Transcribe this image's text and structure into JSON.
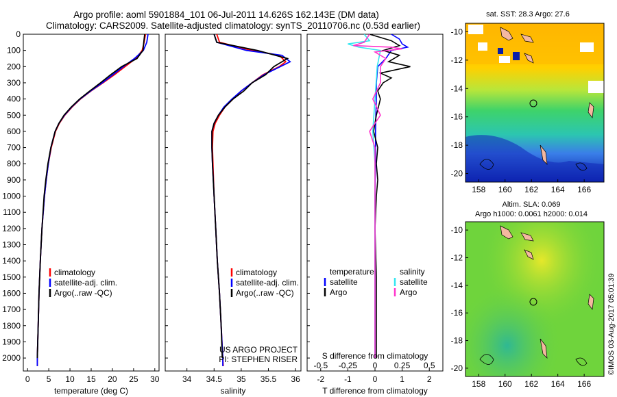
{
  "header": {
    "line1": "Argo profile: aoml 5901884_101 06-Jul-2011 14.626S 162.143E (DM data)",
    "line2": "Climatology: CARS2009. Satellite-adjusted climatology: synTS_20110706.nc (0.53d earlier)"
  },
  "colors": {
    "climatology": "#ff0000",
    "satellite": "#0000ff",
    "argo": "#000000",
    "sal_satellite": "#33e6f0",
    "sal_argo": "#ff33cc"
  },
  "chart_data": [
    {
      "type": "line",
      "id": "temperature",
      "xlabel": "temperature (deg C)",
      "xlim": [
        -1,
        31
      ],
      "xticks": [
        0,
        5,
        10,
        15,
        20,
        25,
        30
      ],
      "ylim": [
        0,
        2080
      ],
      "yticks": [
        0,
        100,
        200,
        300,
        400,
        500,
        600,
        700,
        800,
        900,
        1000,
        1100,
        1200,
        1300,
        1400,
        1500,
        1600,
        1700,
        1800,
        1900,
        2000
      ],
      "legend": [
        "climatology",
        "satellite-adj. clim.",
        "Argo(..raw -QC)"
      ],
      "series": [
        {
          "name": "climatology",
          "depth": [
            0,
            50,
            100,
            150,
            200,
            250,
            300,
            350,
            400,
            450,
            500,
            550,
            600,
            700,
            800,
            900,
            1000,
            1200,
            1400,
            1600,
            1800,
            2000,
            2050
          ],
          "values": [
            27.8,
            27.5,
            27.0,
            25.5,
            23.0,
            20.5,
            17.8,
            15.0,
            12.5,
            10.5,
            8.8,
            7.5,
            6.6,
            5.6,
            4.9,
            4.4,
            4.0,
            3.4,
            3.0,
            2.7,
            2.5,
            2.3,
            2.3
          ]
        },
        {
          "name": "satellite-adj. clim.",
          "depth": [
            0,
            50,
            100,
            150,
            200,
            250,
            300,
            350,
            400,
            450,
            500,
            550,
            600,
            700,
            800,
            900,
            1000,
            1200,
            1400,
            1600,
            1800,
            2000,
            2050
          ],
          "values": [
            28.4,
            28.1,
            27.3,
            25.2,
            22.6,
            20.1,
            17.6,
            14.9,
            12.4,
            10.4,
            8.7,
            7.4,
            6.5,
            5.5,
            4.9,
            4.4,
            4.0,
            3.4,
            3.0,
            2.7,
            2.5,
            2.3,
            2.3
          ]
        },
        {
          "name": "Argo(..raw -QC)",
          "depth": [
            0,
            50,
            100,
            150,
            200,
            250,
            300,
            350,
            400,
            450,
            500,
            550,
            600,
            700,
            800,
            900,
            1000,
            1200,
            1400,
            1600,
            1800,
            2000
          ],
          "values": [
            27.6,
            27.4,
            27.2,
            25.8,
            22.2,
            19.6,
            17.2,
            14.7,
            12.3,
            10.3,
            8.6,
            7.4,
            6.5,
            5.5,
            4.8,
            4.3,
            3.9,
            3.4,
            3.0,
            2.7,
            2.5,
            2.3
          ]
        }
      ]
    },
    {
      "type": "line",
      "id": "salinity",
      "xlabel": "salinity",
      "xlim": [
        33.6,
        36.1
      ],
      "xticks": [
        34,
        34.5,
        35,
        35.5,
        36
      ],
      "ylim": [
        0,
        2080
      ],
      "legend": [
        "climatology",
        "satellite-adj. clim.",
        "Argo(..raw -QC)"
      ],
      "annotation": [
        "US ARGO PROJECT",
        "PI: STEPHEN RISER"
      ],
      "series": [
        {
          "name": "climatology",
          "depth": [
            0,
            50,
            100,
            130,
            170,
            200,
            250,
            300,
            350,
            400,
            450,
            500,
            550,
            600,
            700,
            800,
            1000,
            1200,
            1400,
            1600,
            1800,
            2000,
            2050
          ],
          "values": [
            34.55,
            34.6,
            35.2,
            35.7,
            35.82,
            35.7,
            35.4,
            35.2,
            35.0,
            34.85,
            34.7,
            34.6,
            34.52,
            34.48,
            34.47,
            34.48,
            34.5,
            34.53,
            34.56,
            34.6,
            34.63,
            34.66,
            34.67
          ]
        },
        {
          "name": "satellite-adj. clim.",
          "depth": [
            0,
            50,
            100,
            130,
            170,
            200,
            250,
            300,
            350,
            400,
            450,
            500,
            550,
            600,
            700,
            800,
            1000,
            1200,
            1400,
            1600,
            1800,
            2000,
            2050
          ],
          "values": [
            34.5,
            34.55,
            35.1,
            35.75,
            35.9,
            35.72,
            35.42,
            35.2,
            35.0,
            34.83,
            34.68,
            34.58,
            34.5,
            34.46,
            34.46,
            34.47,
            34.5,
            34.53,
            34.56,
            34.6,
            34.63,
            34.66,
            34.66
          ]
        },
        {
          "name": "Argo(..raw -QC)",
          "depth": [
            0,
            50,
            100,
            150,
            200,
            250,
            300,
            350,
            400,
            450,
            500,
            550,
            600,
            700,
            800,
            1000,
            1200,
            1400,
            1600,
            1800,
            2000
          ],
          "values": [
            34.5,
            34.55,
            35.3,
            35.85,
            35.6,
            35.45,
            35.2,
            35.05,
            34.85,
            34.7,
            34.58,
            34.5,
            34.46,
            34.46,
            34.47,
            34.5,
            34.53,
            34.56,
            34.6,
            34.63,
            34.65
          ]
        }
      ]
    },
    {
      "type": "line",
      "id": "difference",
      "xlabel": "T difference from climatology",
      "xlabel2": "S difference from climatology",
      "xlim": [
        -2.5,
        2.5
      ],
      "xticks": [
        -2,
        -1,
        0,
        1,
        2
      ],
      "xticks2": [
        "-0.5",
        "-0.25",
        "0",
        "0.25",
        "0.5"
      ],
      "ylim": [
        0,
        2080
      ],
      "legend_left_title": "temperature",
      "legend_right_title": "salinity",
      "legend": [
        "satellite",
        "Argo",
        "satellite",
        "Argo"
      ],
      "series": [
        {
          "name": "T satellite",
          "depth": [
            0,
            30,
            60,
            80,
            100,
            150,
            200,
            300,
            400,
            500,
            600,
            800,
            1000,
            1500,
            2000
          ],
          "values": [
            0.6,
            0.9,
            1.0,
            1.2,
            0.6,
            0.4,
            0.1,
            0.05,
            0.05,
            0.03,
            0.02,
            0.02,
            0.0,
            0.0,
            0.0
          ]
        },
        {
          "name": "T Argo",
          "depth": [
            0,
            40,
            70,
            100,
            130,
            170,
            200,
            240,
            270,
            300,
            350,
            400,
            500,
            600,
            700,
            800,
            900,
            1000,
            1200,
            1500,
            2000
          ],
          "values": [
            -0.2,
            0.6,
            0.9,
            0.3,
            0.9,
            0.5,
            1.3,
            0.2,
            0.6,
            0.3,
            0.1,
            0.2,
            0.05,
            -0.05,
            0.1,
            0.05,
            0.1,
            0.05,
            0.0,
            0.05,
            0.05
          ]
        },
        {
          "name": "S satellite",
          "depth": [
            0,
            40,
            60,
            80,
            100,
            200,
            400,
            600,
            800,
            1000,
            1500,
            2000
          ],
          "values": [
            -0.1,
            -0.05,
            -0.25,
            -0.15,
            0.05,
            0.02,
            0.0,
            -0.02,
            0.0,
            0.0,
            0.0,
            0.0
          ]
        },
        {
          "name": "S Argo",
          "depth": [
            0,
            50,
            70,
            80,
            90,
            110,
            150,
            200,
            300,
            400,
            500,
            600,
            700,
            800,
            1000,
            1500,
            2000
          ],
          "values": [
            -0.05,
            -0.1,
            -0.2,
            0.15,
            0.25,
            0.0,
            0.1,
            0.05,
            0.05,
            -0.02,
            0.05,
            -0.05,
            0.0,
            0.0,
            0.0,
            0.0,
            0.0
          ]
        }
      ]
    }
  ],
  "maps": {
    "sst": {
      "title": "sat. SST: 28.3 Argo: 27.6",
      "xticks": [
        158,
        160,
        162,
        164,
        166
      ],
      "yticks": [
        -10,
        -12,
        -14,
        -16,
        -18,
        -20
      ]
    },
    "sla": {
      "title1": "Altim. SLA: 0.069",
      "title2": "Argo h1000: 0.0061 h2000: 0.014",
      "xticks": [
        158,
        160,
        162,
        164,
        166
      ],
      "yticks": [
        -10,
        -12,
        -14,
        -16,
        -18,
        -20
      ]
    }
  },
  "footer": {
    "timestamp": "©IMOS 03-Aug-2017 05:01:39"
  }
}
